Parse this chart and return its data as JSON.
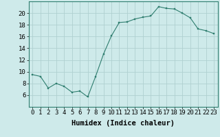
{
  "xlabel": "Humidex (Indice chaleur)",
  "ylabel": "",
  "x": [
    0,
    1,
    2,
    3,
    4,
    5,
    6,
    7,
    8,
    9,
    10,
    11,
    12,
    13,
    14,
    15,
    16,
    17,
    18,
    19,
    20,
    21,
    22,
    23
  ],
  "y": [
    9.5,
    9.2,
    7.2,
    8.0,
    7.5,
    6.5,
    6.7,
    5.7,
    9.2,
    13.0,
    16.1,
    18.4,
    18.5,
    19.0,
    19.3,
    19.5,
    21.1,
    20.8,
    20.7,
    20.0,
    19.2,
    17.3,
    17.0,
    16.5
  ],
  "ylim": [
    4,
    22
  ],
  "xlim": [
    -0.5,
    23.5
  ],
  "yticks": [
    6,
    8,
    10,
    12,
    14,
    16,
    18,
    20
  ],
  "xticks": [
    0,
    1,
    2,
    3,
    4,
    5,
    6,
    7,
    8,
    9,
    10,
    11,
    12,
    13,
    14,
    15,
    16,
    17,
    18,
    19,
    20,
    21,
    22,
    23
  ],
  "line_color": "#2e7d6e",
  "marker_color": "#2e7d6e",
  "bg_color": "#ceeaea",
  "grid_color": "#b0d0d0",
  "tick_label_fontsize": 6.5,
  "xlabel_fontsize": 7.5
}
